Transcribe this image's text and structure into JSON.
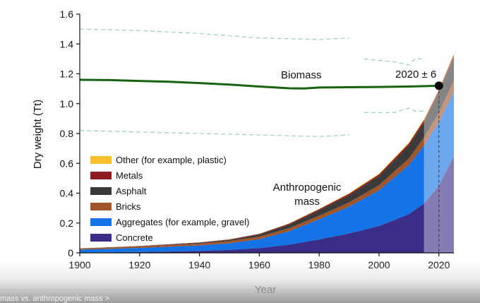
{
  "chart_data": {
    "type": "area",
    "ylabel": "Dry weight (Tt)",
    "xlabel": "Year",
    "xlim": [
      1900,
      2025
    ],
    "ylim": [
      0,
      1.6
    ],
    "x_ticks": [
      "1900",
      "1920",
      "1940",
      "1960",
      "1980",
      "2000",
      "2020"
    ],
    "y_ticks": [
      "0",
      "0.2",
      "0.4",
      "0.6",
      "0.8",
      "1.0",
      "1.2",
      "1.4",
      "1.6"
    ],
    "years": [
      1900,
      1910,
      1920,
      1930,
      1940,
      1950,
      1960,
      1970,
      1980,
      1990,
      2000,
      2010,
      2015,
      2020,
      2025
    ],
    "series": [
      {
        "name": "Concrete",
        "color": "#3a2d87",
        "values": [
          0.002,
          0.004,
          0.006,
          0.009,
          0.013,
          0.02,
          0.032,
          0.055,
          0.09,
          0.13,
          0.18,
          0.26,
          0.33,
          0.45,
          0.65
        ]
      },
      {
        "name": "Aggregates (for example, gravel)",
        "color": "#1473e6",
        "values": [
          0.02,
          0.023,
          0.027,
          0.032,
          0.037,
          0.044,
          0.06,
          0.09,
          0.135,
          0.18,
          0.24,
          0.33,
          0.39,
          0.43,
          0.43
        ]
      },
      {
        "name": "Bricks",
        "color": "#a0552b",
        "values": [
          0.008,
          0.009,
          0.01,
          0.012,
          0.013,
          0.015,
          0.017,
          0.02,
          0.024,
          0.028,
          0.034,
          0.044,
          0.052,
          0.06,
          0.075
        ]
      },
      {
        "name": "Asphalt",
        "color": "#3a3a3a",
        "values": [
          0.0,
          0.001,
          0.002,
          0.003,
          0.005,
          0.008,
          0.014,
          0.025,
          0.036,
          0.048,
          0.06,
          0.085,
          0.1,
          0.13,
          0.15
        ]
      },
      {
        "name": "Metals",
        "color": "#8c1c22",
        "values": [
          0.0,
          0.001,
          0.001,
          0.002,
          0.002,
          0.003,
          0.004,
          0.006,
          0.008,
          0.01,
          0.012,
          0.015,
          0.017,
          0.02,
          0.024
        ]
      },
      {
        "name": "Other (for example, plastic)",
        "color": "#f5c02c",
        "values": [
          0.0,
          0.0,
          0.0,
          0.0,
          0.0,
          0.001,
          0.001,
          0.002,
          0.003,
          0.004,
          0.005,
          0.006,
          0.007,
          0.008,
          0.01
        ]
      }
    ],
    "legend_order": [
      "Other (for example, plastic)",
      "Metals",
      "Asphalt",
      "Bricks",
      "Aggregates (for example, gravel)",
      "Concrete"
    ],
    "legend_position": "lower-left",
    "projection_start": 2015,
    "biomass": {
      "label": "Biomass",
      "color": "#176312",
      "x": [
        1900,
        1910,
        1920,
        1930,
        1940,
        1950,
        1960,
        1970,
        1975,
        1980,
        1990,
        2000,
        2010,
        2020
      ],
      "y": [
        1.16,
        1.158,
        1.152,
        1.147,
        1.138,
        1.128,
        1.115,
        1.103,
        1.102,
        1.108,
        1.11,
        1.112,
        1.115,
        1.12
      ]
    },
    "biomass_upper": {
      "color": "#9fd3b6",
      "x": [
        1900,
        1920,
        1940,
        1960,
        1980,
        1990
      ],
      "y": [
        1.5,
        1.49,
        1.47,
        1.44,
        1.43,
        1.44
      ],
      "x2": [
        1995,
        2005,
        2010,
        2012,
        2015
      ],
      "y2": [
        1.3,
        1.28,
        1.26,
        1.3,
        1.3
      ]
    },
    "biomass_lower": {
      "color": "#9fd3b6",
      "x": [
        1900,
        1920,
        1940,
        1960,
        1980,
        1990
      ],
      "y": [
        0.82,
        0.81,
        0.8,
        0.79,
        0.78,
        0.79
      ],
      "x2": [
        1995,
        2005,
        2010,
        2012,
        2015
      ],
      "y2": [
        0.94,
        0.94,
        0.97,
        0.95,
        0.95
      ]
    },
    "crossover": {
      "label": "2020 ± 6",
      "year": 2020,
      "value": 1.12
    },
    "annotations": [
      "Anthropogenic",
      "mass"
    ]
  },
  "footer": {
    "text": "mass vs. anthropogenic mass >"
  }
}
